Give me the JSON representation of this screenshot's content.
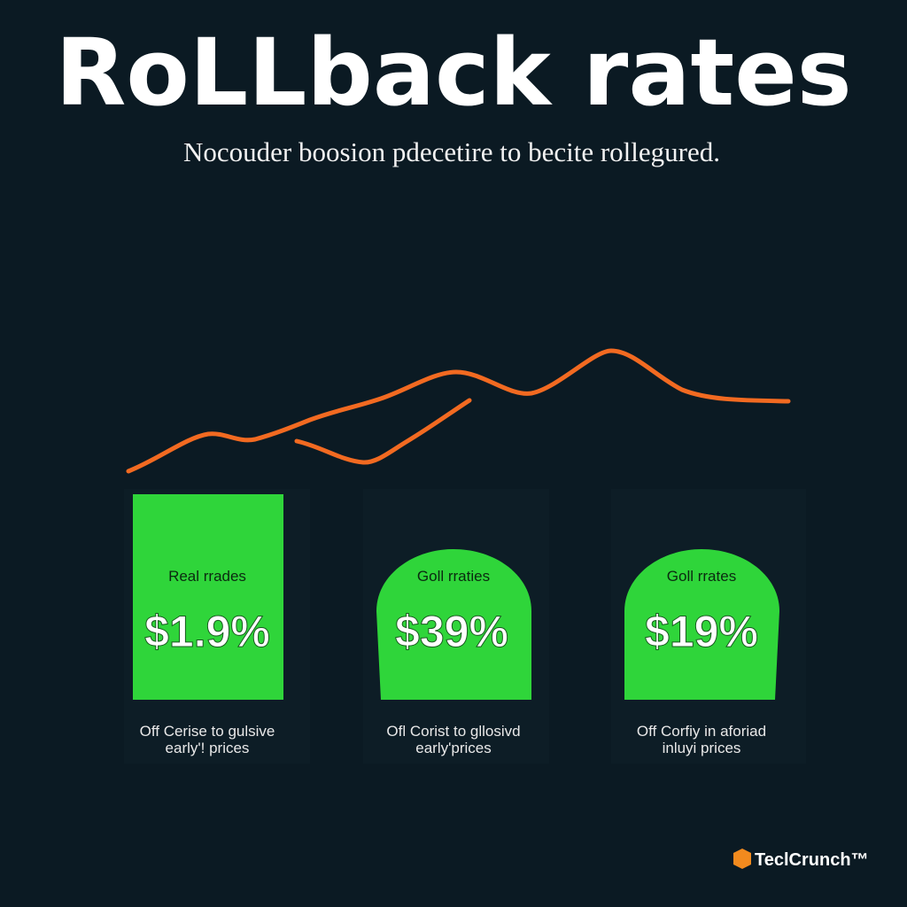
{
  "header": {
    "title": "RoLLback rates",
    "subtitle": "Nocouder boosion pdecetire to becite rollegured."
  },
  "cards": [
    {
      "label": "Real rrades",
      "value": "$1.9%",
      "caption": [
        "Off Cerise to gulsive",
        "early'! prices"
      ]
    },
    {
      "label": "Goll rraties",
      "value": "$39%",
      "caption": [
        "Ofl Corist to gllosivd",
        "earlyʹprices"
      ]
    },
    {
      "label": "Goll rrates",
      "value": "$19%",
      "caption": [
        "Off Corfiy in aforiad",
        "inluyi prices"
      ]
    }
  ],
  "footer": {
    "logo": "TeclCrunch™"
  }
}
